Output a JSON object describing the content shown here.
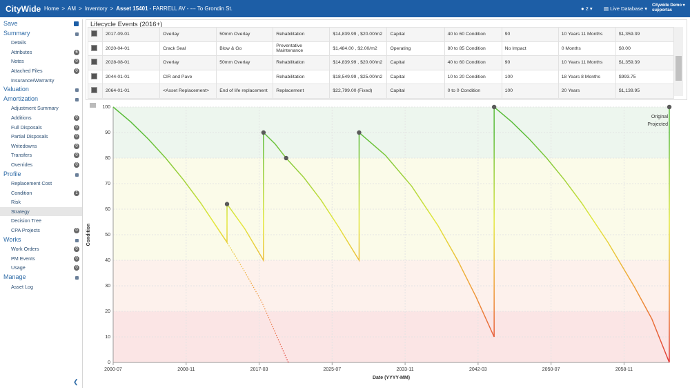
{
  "header": {
    "brand": "CityWide",
    "breadcrumb": [
      "Home",
      "AM",
      "Inventory"
    ],
    "separator": ">",
    "asset": "Asset 15401",
    "asset_desc": "- FARRELL AV - --- To Grondin St.",
    "user_count": "2",
    "database": "Live Database",
    "account": "Citywide Demo",
    "account_sub": "supportas"
  },
  "sidebar": {
    "save": "Save",
    "sections": [
      {
        "title": "Summary",
        "items": [
          {
            "label": "Details",
            "badge": null
          },
          {
            "label": "Attributes",
            "badge": "6"
          },
          {
            "label": "Notes",
            "badge": "0"
          },
          {
            "label": "Attached Files",
            "badge": "0"
          },
          {
            "label": "Insurance/Warranty",
            "badge": null
          }
        ]
      },
      {
        "title": "Valuation",
        "items": []
      },
      {
        "title": "Amortization",
        "items": [
          {
            "label": "Adjustment Summary",
            "badge": null
          },
          {
            "label": "Additions",
            "badge": "0"
          },
          {
            "label": "Full Disposals",
            "badge": "0"
          },
          {
            "label": "Partial Disposals",
            "badge": "0"
          },
          {
            "label": "Writedowns",
            "badge": "0"
          },
          {
            "label": "Transfers",
            "badge": "0"
          },
          {
            "label": "Overrides",
            "badge": "0"
          }
        ]
      },
      {
        "title": "Profile",
        "items": [
          {
            "label": "Replacement Cost",
            "badge": null
          },
          {
            "label": "Condition",
            "badge": "1"
          },
          {
            "label": "Risk",
            "badge": null
          },
          {
            "label": "Strategy",
            "badge": null,
            "selected": true
          },
          {
            "label": "Decision Tree",
            "badge": null
          },
          {
            "label": "CPA Projects",
            "badge": "0"
          }
        ]
      },
      {
        "title": "Works",
        "items": [
          {
            "label": "Work Orders",
            "badge": "0"
          },
          {
            "label": "PM Events",
            "badge": "0"
          },
          {
            "label": "Usage",
            "badge": "0"
          }
        ]
      },
      {
        "title": "Manage",
        "items": [
          {
            "label": "Asset Log",
            "badge": null
          }
        ]
      }
    ]
  },
  "table": {
    "title": "Lifecycle Events (2016+)",
    "rows": [
      [
        "2017-09-01",
        "Overlay",
        "50mm Overlay",
        "Rehabilitation",
        "$14,839.99 , $20.00/m2",
        "Capital",
        "40 to 60 Condition",
        "90",
        "10 Years 11 Months",
        "$1,359.39"
      ],
      [
        "2020-04-01",
        "Crack Seal",
        "Blow & Go",
        "Preventative Maintenance",
        "$1,484.00 , $2.00/m2",
        "Operating",
        "80 to 85 Condition",
        "No Impact",
        "0 Months",
        "$0.00"
      ],
      [
        "2028-08-01",
        "Overlay",
        "50mm Overlay",
        "Rehabilitation",
        "$14,839.99 , $20.00/m2",
        "Capital",
        "40 to 60 Condition",
        "90",
        "10 Years 11 Months",
        "$1,359.39"
      ],
      [
        "2044-01-01",
        "CIR and Pave",
        null,
        "Rehabilitation",
        "$18,549.99 , $25.00/m2",
        "Capital",
        "10 to 20 Condition",
        "100",
        "18 Years 8 Months",
        "$993.75"
      ],
      [
        "2064-01-01",
        "<Asset Replacement>",
        "End of life replacement",
        "Replacement",
        "$22,799.00  (Fixed)",
        "Capital",
        "0 to 0 Condition",
        "100",
        "20 Years",
        "$1,139.95"
      ]
    ]
  },
  "chart_data": {
    "type": "line",
    "x_label": "Date (YYYY-MM)",
    "y_label": "Condition",
    "xlim": [
      "2000-07",
      "2064-01"
    ],
    "xticks": [
      "2000-07",
      "2008-11",
      "2017-03",
      "2025-07",
      "2033-11",
      "2042-03",
      "2050-07",
      "2058-11"
    ],
    "ylim": [
      0,
      100
    ],
    "yticks": [
      0,
      10,
      20,
      30,
      40,
      50,
      60,
      70,
      80,
      90,
      100
    ],
    "grid": true,
    "legend": "top-right",
    "bands": [
      {
        "from": 80,
        "to": 100,
        "color": "#edf6ee"
      },
      {
        "from": 40,
        "to": 80,
        "color": "#fbfbe9"
      },
      {
        "from": 20,
        "to": 40,
        "color": "#fdf1ec"
      },
      {
        "from": 0,
        "to": 20,
        "color": "#fbe5e5"
      }
    ],
    "color_stops": [
      {
        "value": 0,
        "color": "#e23a3a"
      },
      {
        "value": 30,
        "color": "#f0a23a"
      },
      {
        "value": 55,
        "color": "#e4e83e"
      },
      {
        "value": 90,
        "color": "#5cbd3c"
      }
    ],
    "series": [
      {
        "name": "Original",
        "style": "dotted",
        "x": [
          "2000-07",
          "2002-07",
          "2004-07",
          "2006-07",
          "2008-07",
          "2010-07",
          "2013-07",
          "2015-07",
          "2017-07",
          "2020-07"
        ],
        "values": [
          100,
          94.2,
          87.5,
          80,
          71.6,
          62.4,
          47,
          35.7,
          23.5,
          0
        ]
      },
      {
        "name": "Projected",
        "style": "solid",
        "x": [
          "2000-07",
          "2002-07",
          "2004-07",
          "2006-07",
          "2008-07",
          "2010-07",
          "2013-07",
          "2013-07",
          "2015-07",
          "2017-09",
          "2017-09",
          "2019-01",
          "2020-04",
          "2022-04",
          "2024-04",
          "2026-04",
          "2028-08",
          "2028-08",
          "2031-08",
          "2034-08",
          "2037-08",
          "2039-11",
          "2041-12",
          "2044-01",
          "2044-01",
          "2046-01",
          "2048-01",
          "2050-01",
          "2052-01",
          "2054-01",
          "2057-01",
          "2060-01",
          "2062-01",
          "2064-01",
          "2064-01"
        ],
        "values": [
          100,
          94.2,
          87.5,
          80,
          71.6,
          62.4,
          47,
          62,
          52.5,
          40,
          90,
          85.5,
          80,
          72.5,
          63.5,
          53,
          40,
          90,
          81.1,
          69,
          53.6,
          40,
          25.8,
          10,
          100,
          94.2,
          87.5,
          80,
          71.6,
          62.4,
          47,
          29.7,
          17.1,
          0,
          100
        ]
      }
    ],
    "events": {
      "color": "#5a5a5a",
      "x": [
        "2013-07",
        "2017-09",
        "2020-04",
        "2028-08",
        "2044-01",
        "2064-01"
      ],
      "values": [
        62,
        90,
        80,
        90,
        100,
        100
      ]
    }
  }
}
